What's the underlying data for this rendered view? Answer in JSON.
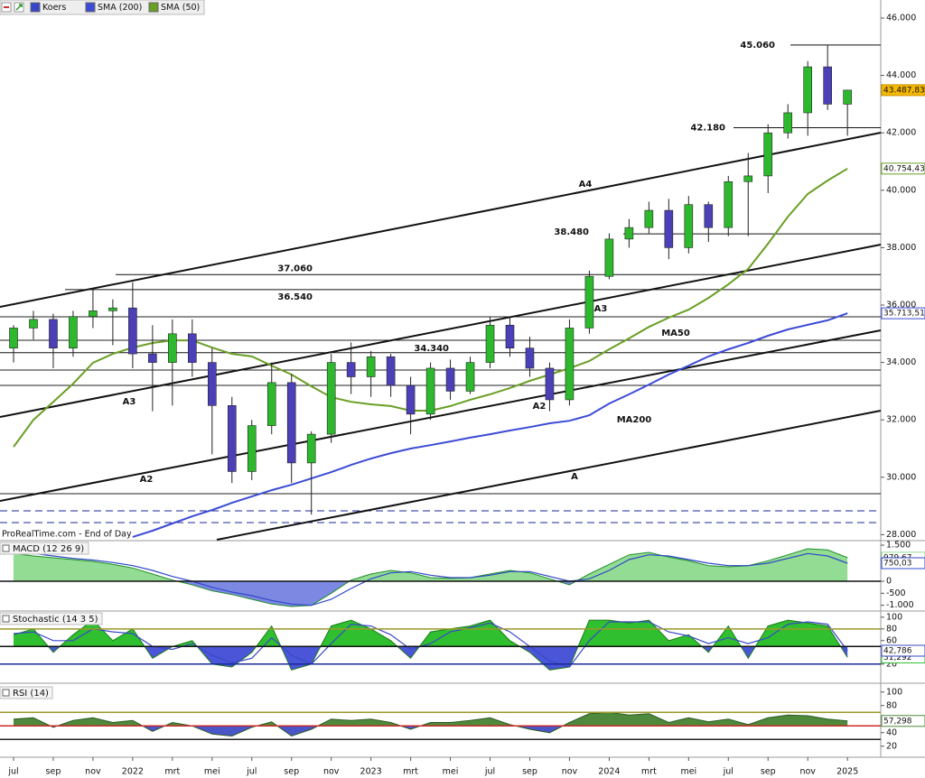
{
  "chart_data": [
    {
      "type": "candlestick",
      "watermark": "ProRealTime.com - End of Day",
      "categories": [
        "jul",
        null,
        "sep",
        null,
        "nov",
        null,
        "2022",
        null,
        "mrt",
        null,
        "mei",
        null,
        "jul",
        null,
        "sep",
        null,
        "nov",
        null,
        "2023",
        null,
        "mrt",
        null,
        "mei",
        null,
        "jul",
        null,
        "sep",
        null,
        "nov",
        null,
        "2024",
        null,
        "mrt",
        null,
        "mei",
        null,
        "jul",
        null,
        "sep",
        null,
        "nov",
        null,
        "2025"
      ],
      "candles": {
        "name": "Koers",
        "up_color": "#2db82d",
        "down_color": "#4b40b8",
        "legend_color": "#3a46c8",
        "open": [
          34500,
          35200,
          35500,
          34500,
          35600,
          35800,
          35900,
          34300,
          34000,
          35000,
          34000,
          32500,
          30200,
          31800,
          33300,
          30500,
          31500,
          34000,
          33500,
          34200,
          33200,
          32200,
          33800,
          33000,
          34000,
          35300,
          34500,
          33800,
          32700,
          35200,
          37000,
          38300,
          38700,
          39300,
          38000,
          39500,
          38700,
          40300,
          40500,
          42000,
          42700,
          44300,
          43000
        ],
        "high": [
          35300,
          35800,
          35700,
          35800,
          36600,
          36200,
          36800,
          35300,
          35500,
          35500,
          34500,
          32800,
          32000,
          34000,
          33600,
          31600,
          34300,
          34700,
          34400,
          34300,
          33500,
          34000,
          34100,
          34200,
          35600,
          35600,
          34900,
          34000,
          35500,
          37200,
          38500,
          39000,
          39600,
          39700,
          39800,
          39600,
          40500,
          41300,
          42300,
          43000,
          44500,
          45060,
          43500
        ],
        "low": [
          34000,
          34800,
          33800,
          34200,
          35200,
          34600,
          33800,
          32300,
          32500,
          33500,
          30800,
          29800,
          29900,
          31500,
          29800,
          28700,
          31200,
          32900,
          32800,
          32800,
          31500,
          32000,
          32700,
          32900,
          33800,
          34200,
          33500,
          32300,
          32500,
          35000,
          36900,
          38000,
          38500,
          37600,
          37800,
          38200,
          38400,
          38400,
          39900,
          41800,
          41900,
          42800,
          41900
        ],
        "close": [
          35200,
          35500,
          34500,
          35600,
          35800,
          35900,
          34300,
          34000,
          35000,
          34000,
          32500,
          30200,
          31800,
          33300,
          30500,
          31500,
          34000,
          33500,
          34200,
          33200,
          32200,
          33800,
          33000,
          34000,
          35300,
          34500,
          33800,
          32700,
          35200,
          37000,
          38300,
          38700,
          39300,
          38000,
          39500,
          38700,
          40300,
          40500,
          42000,
          42700,
          44300,
          43000,
          43487.83
        ],
        "last": {
          "value": 43487.83,
          "label": "43.487,83"
        }
      },
      "series": [
        {
          "name": "SMA (200)",
          "color": "#3c4bd6",
          "values": [
            null,
            null,
            null,
            null,
            null,
            null,
            27920,
            28140,
            28390,
            28640,
            28860,
            29110,
            29330,
            29550,
            29740,
            29960,
            30180,
            30430,
            30650,
            30840,
            31000,
            31120,
            31250,
            31380,
            31500,
            31630,
            31750,
            31880,
            31970,
            32160,
            32570,
            32890,
            33230,
            33580,
            33890,
            34210,
            34460,
            34680,
            34930,
            35150,
            35310,
            35470,
            35713.51
          ],
          "last": {
            "value": 35713.51,
            "label": "35.713,51"
          }
        },
        {
          "name": "SMA (50)",
          "color": "#6a9f25",
          "values": [
            31060,
            32000,
            32630,
            33260,
            33990,
            34300,
            34520,
            34680,
            34770,
            34770,
            34520,
            34300,
            34210,
            33890,
            33580,
            33170,
            32790,
            32630,
            32540,
            32480,
            32320,
            32320,
            32480,
            32700,
            32890,
            33110,
            33360,
            33580,
            33800,
            34050,
            34460,
            34840,
            35240,
            35560,
            35840,
            36250,
            36720,
            37260,
            38140,
            39080,
            39870,
            40340,
            40754.43
          ],
          "last": {
            "value": 40754.43,
            "label": "40.754,43"
          }
        }
      ],
      "levels": [
        {
          "value": 45060,
          "label": "45.060"
        },
        {
          "value": 42180,
          "label": "42.180"
        },
        {
          "value": 38480,
          "label": "38.480"
        },
        {
          "value": 37060,
          "label": "37.060"
        },
        {
          "value": 36540,
          "label": "36.540"
        },
        {
          "value": 34340,
          "label": "34.340"
        }
      ],
      "annotations": [
        {
          "text": "A4",
          "color": "#111111"
        },
        {
          "text": "A3",
          "color": "#111111"
        },
        {
          "text": "A3",
          "color": "#111111"
        },
        {
          "text": "A2",
          "color": "#111111"
        },
        {
          "text": "A2",
          "color": "#111111"
        },
        {
          "text": "A",
          "color": "#111111"
        },
        {
          "text": "MA50",
          "color": "#d9383a"
        },
        {
          "text": "MA200",
          "color": "#2a3ac0"
        }
      ],
      "ylim": [
        27824,
        46629
      ],
      "yticks": [
        {
          "value": 46000,
          "label": "46.000"
        },
        {
          "value": 44000,
          "label": "44.000"
        },
        {
          "value": 42000,
          "label": "42.000"
        },
        {
          "value": 40000,
          "label": "40.000"
        },
        {
          "value": 38000,
          "label": "38.000"
        },
        {
          "value": 36000,
          "label": "36.000"
        },
        {
          "value": 34000,
          "label": "34.000"
        },
        {
          "value": 32000,
          "label": "32.000"
        },
        {
          "value": 30000,
          "label": "30.000"
        },
        {
          "value": 28000,
          "label": "28.000"
        }
      ],
      "grid": false
    },
    {
      "type": "macd",
      "title": "MACD (12 26 9)",
      "baseline": 0,
      "ylim": [
        -1200,
        1650
      ],
      "yticks": [
        {
          "value": 1500,
          "label": "1.500"
        },
        0,
        -500,
        {
          "value": -1000,
          "label": "-1.000"
        }
      ],
      "series": [
        {
          "color": "#93dc93",
          "negative_color": "#7c88e2",
          "line_color": "#1f8f2a",
          "values": [
            1150,
            1050,
            975,
            900,
            825,
            700,
            550,
            300,
            50,
            -150,
            -400,
            -550,
            -750,
            -950,
            -1050,
            -1000,
            -500,
            50,
            300,
            450,
            350,
            150,
            120,
            150,
            300,
            450,
            350,
            100,
            -150,
            300,
            700,
            1100,
            1200,
            1000,
            850,
            650,
            600,
            650,
            850,
            1100,
            1350,
            1300,
            979.67
          ],
          "last": {
            "value": 979.67,
            "label": "979,67"
          }
        },
        {
          "color": "#3048c8",
          "values": [
            1250,
            1150,
            1050,
            950,
            880,
            780,
            650,
            450,
            200,
            0,
            -250,
            -450,
            -600,
            -800,
            -950,
            -1000,
            -750,
            -300,
            100,
            350,
            400,
            250,
            150,
            150,
            250,
            400,
            400,
            200,
            0,
            100,
            450,
            900,
            1100,
            1050,
            900,
            750,
            650,
            650,
            750,
            950,
            1150,
            1050,
            750.03
          ],
          "last": {
            "value": 750.03,
            "label": "750,03"
          }
        }
      ],
      "ref_lines": [
        {
          "value": 0,
          "color": "#111111"
        }
      ]
    },
    {
      "type": "stochastic",
      "title": "Stochastic (14 3 5)",
      "baseline": 50,
      "ylim": [
        -5,
        109
      ],
      "yticks": [
        100,
        80,
        60,
        20
      ],
      "series": [
        {
          "color": "#2fbf2f",
          "negative_color": "#4a55d8",
          "line_color": "#1c7a1c",
          "values": [
            70,
            80,
            40,
            70,
            95,
            60,
            80,
            30,
            50,
            60,
            20,
            15,
            40,
            85,
            10,
            20,
            85,
            95,
            80,
            60,
            30,
            75,
            80,
            85,
            95,
            60,
            40,
            10,
            15,
            95,
            95,
            90,
            95,
            60,
            70,
            40,
            85,
            30,
            85,
            95,
            90,
            85,
            31.292
          ],
          "last": {
            "value": 31.292,
            "label": "31,292"
          }
        },
        {
          "color": "#3a48c8",
          "values": [
            72,
            75,
            60,
            60,
            80,
            75,
            72,
            50,
            45,
            55,
            35,
            22,
            30,
            65,
            35,
            20,
            55,
            88,
            85,
            70,
            45,
            55,
            75,
            82,
            90,
            75,
            50,
            25,
            15,
            60,
            92,
            92,
            92,
            75,
            68,
            55,
            65,
            55,
            65,
            88,
            92,
            88,
            42.786
          ],
          "last": {
            "value": 42.786,
            "label": "42,786"
          }
        }
      ],
      "ref_lines": [
        {
          "value": 80,
          "color": "#9a9a2a"
        },
        {
          "value": 50,
          "color": "#111111"
        },
        {
          "value": 20,
          "color": "#1a2a9a"
        }
      ]
    },
    {
      "type": "rsi",
      "title": "RSI (14)",
      "baseline": 50,
      "ylim": [
        5,
        109
      ],
      "yticks": [
        100,
        80,
        60,
        40,
        20
      ],
      "series": [
        {
          "color": "#4f8a3c",
          "negative_color": "#4a55c8",
          "line_color": "#2d5a22",
          "values": [
            60,
            62,
            48,
            58,
            62,
            55,
            58,
            42,
            55,
            50,
            38,
            35,
            48,
            56,
            35,
            45,
            60,
            58,
            60,
            55,
            45,
            55,
            55,
            58,
            62,
            52,
            45,
            40,
            55,
            68,
            70,
            66,
            68,
            55,
            62,
            56,
            60,
            52,
            62,
            66,
            65,
            60,
            57.298
          ],
          "last": {
            "value": 57.298,
            "label": "57,298"
          }
        }
      ],
      "ref_lines": [
        {
          "value": 70,
          "color": "#9a9a2a"
        },
        {
          "value": 50,
          "color": "#cc2a2a"
        },
        {
          "value": 30,
          "color": "#222222"
        }
      ]
    }
  ]
}
